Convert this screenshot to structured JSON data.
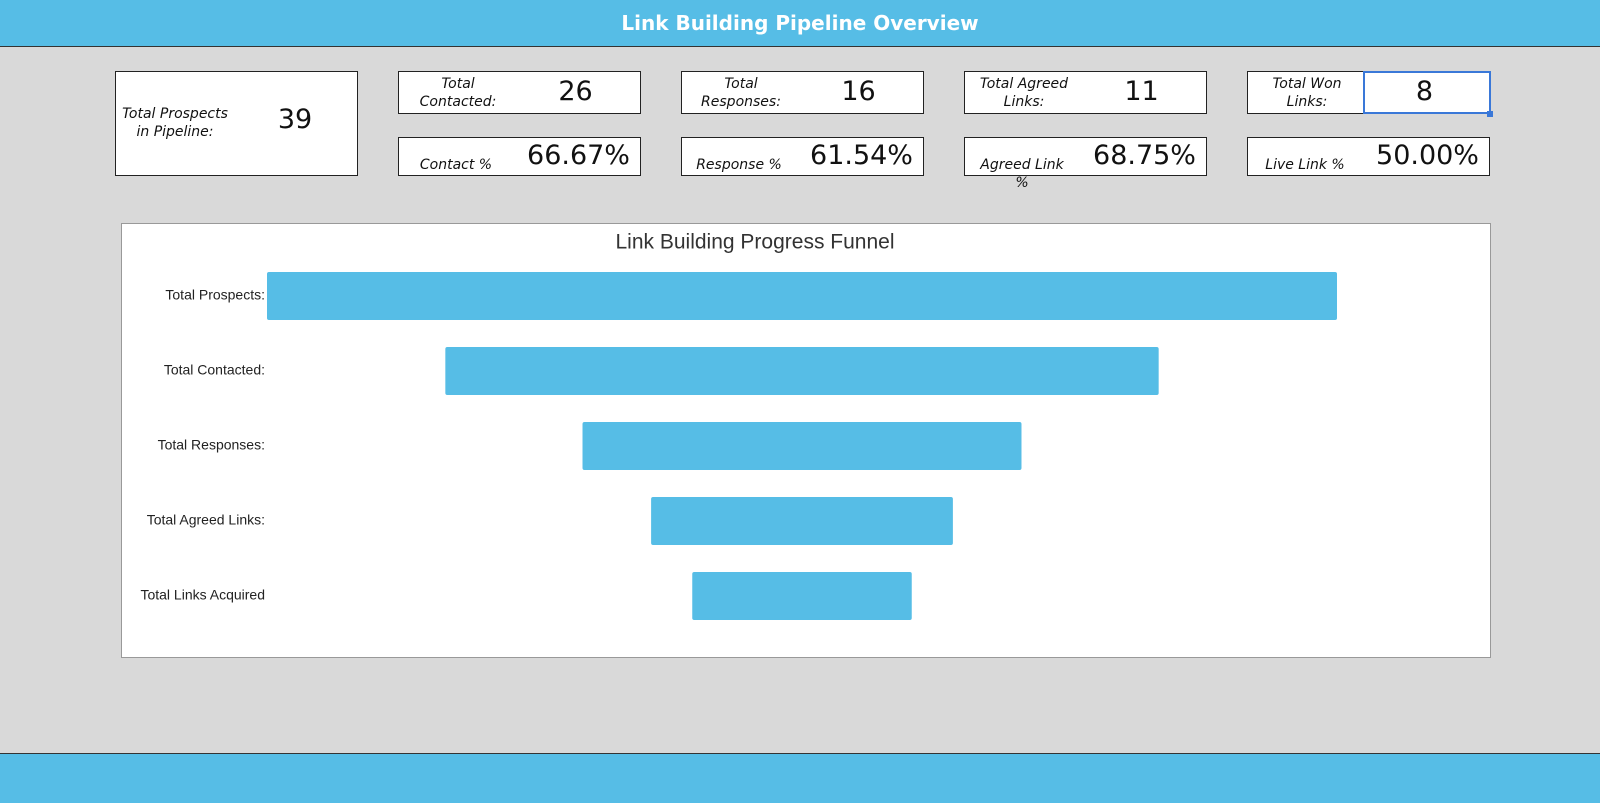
{
  "header": {
    "title": "Link Building Pipeline Overview"
  },
  "kpis": {
    "prospects": {
      "label": "Total Prospects in Pipeline:",
      "value": 39
    },
    "cards": [
      {
        "label": "Total Contacted:",
        "value": 26,
        "rate_label": "Contact %",
        "rate": "66.67%"
      },
      {
        "label": "Total Responses:",
        "value": 16,
        "rate_label": "Response %",
        "rate": "61.54%"
      },
      {
        "label": "Total Agreed Links:",
        "value": 11,
        "rate_label": "Agreed Link %",
        "rate": "68.75%"
      },
      {
        "label": "Total Won Links:",
        "value": 8,
        "rate_label": "Live Link %",
        "rate": "50.00%"
      }
    ]
  },
  "chart_data": {
    "type": "funnel",
    "title": "Link Building Progress Funnel",
    "categories": [
      "Total Prospects:",
      "Total Contacted:",
      "Total Responses:",
      "Total Agreed Links:",
      "Total Links Acquired"
    ],
    "values": [
      39,
      26,
      16,
      11,
      8
    ],
    "color": "#56bde6"
  },
  "conversion_cells": [
    "66.67%",
    "61.54%",
    "68.75%",
    "50.00%"
  ]
}
